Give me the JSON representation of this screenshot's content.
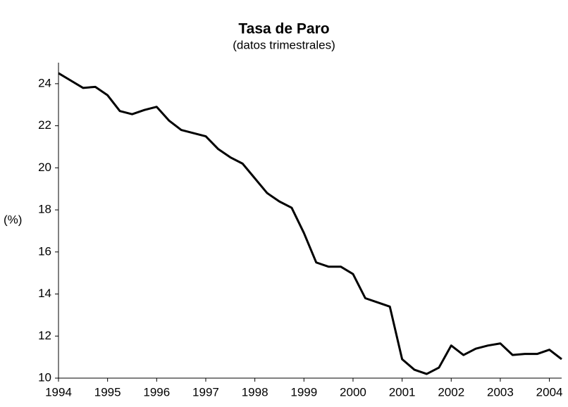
{
  "chart_data": {
    "type": "line",
    "title": "Tasa de Paro",
    "subtitle": "(datos trimestrales)",
    "y_label": "(%)",
    "x": [
      1994,
      1994.25,
      1994.5,
      1994.75,
      1995,
      1995.25,
      1995.5,
      1995.75,
      1996,
      1996.25,
      1996.5,
      1996.75,
      1997,
      1997.25,
      1997.5,
      1997.75,
      1998,
      1998.25,
      1998.5,
      1998.75,
      1999,
      1999.25,
      1999.5,
      1999.75,
      2000,
      2000.25,
      2000.5,
      2000.75,
      2001,
      2001.25,
      2001.5,
      2001.75,
      2002,
      2002.25,
      2002.5,
      2002.75,
      2003,
      2003.25,
      2003.5,
      2003.75,
      2004,
      2004.25
    ],
    "values": [
      24.5,
      24.15,
      23.8,
      23.85,
      23.45,
      22.7,
      22.55,
      22.75,
      22.9,
      22.25,
      21.8,
      21.65,
      21.5,
      20.9,
      20.5,
      20.2,
      19.5,
      18.8,
      18.4,
      18.1,
      16.9,
      15.5,
      15.3,
      15.3,
      14.95,
      13.8,
      13.6,
      13.4,
      10.9,
      10.4,
      10.2,
      10.5,
      11.55,
      11.1,
      11.4,
      11.55,
      11.65,
      11.1,
      11.15,
      11.15,
      11.35,
      10.9
    ],
    "color": "#000000",
    "xlim": [
      1994,
      2004.25
    ],
    "xticks": [
      1994,
      1995,
      1996,
      1997,
      1998,
      1999,
      2000,
      2001,
      2002,
      2003,
      2004
    ],
    "ylim": [
      10,
      25
    ],
    "yticks": [
      10,
      12,
      14,
      16,
      18,
      20,
      22,
      24
    ],
    "grid": false
  }
}
